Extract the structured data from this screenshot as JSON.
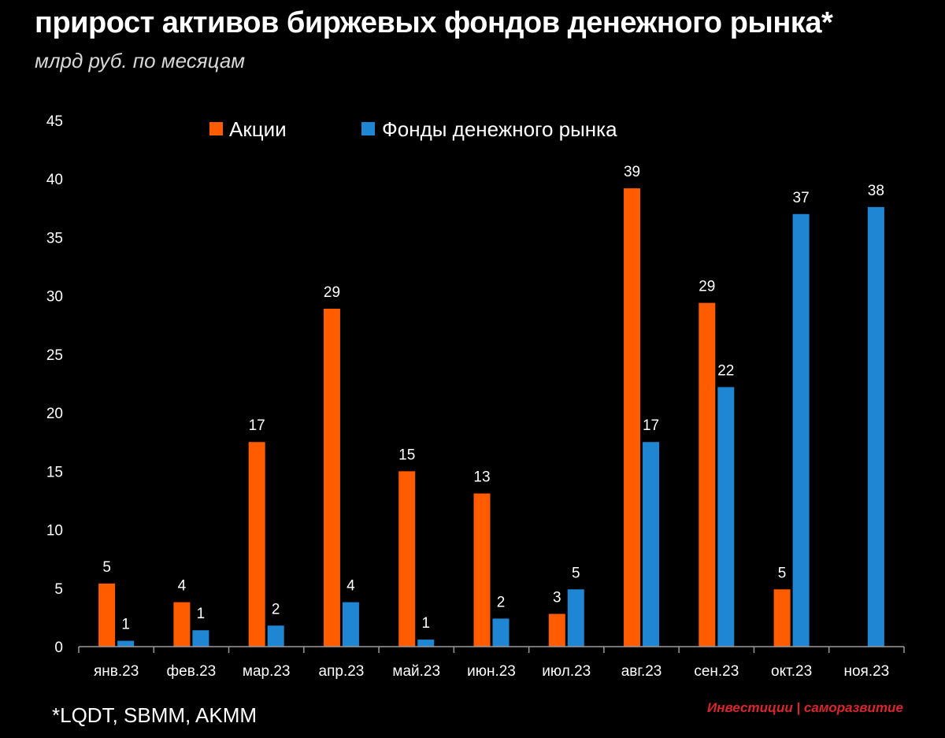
{
  "title": "прирост активов биржевых фондов денежного рынка*",
  "subtitle": "млрд руб. по месяцам",
  "footnote": "*LQDT, SBMM, AKMM",
  "watermark": "Инвестиции | саморазвитие",
  "colors": {
    "background": "#000000",
    "Акции": "#ff5c00",
    "Фонды денежного рынка": "#1f86d3"
  },
  "chart_data": {
    "type": "bar",
    "categories": [
      "янв.23",
      "фев.23",
      "мар.23",
      "апр.23",
      "май.23",
      "июн.23",
      "июл.23",
      "авг.23",
      "сен.23",
      "окт.23",
      "ноя.23"
    ],
    "series": [
      {
        "name": "Акции",
        "values": [
          5.4,
          3.8,
          17.5,
          28.9,
          15.0,
          13.1,
          2.8,
          39.2,
          29.4,
          4.9,
          null
        ],
        "labels": [
          "5",
          "4",
          "17",
          "29",
          "15",
          "13",
          "3",
          "39",
          "29",
          "5",
          ""
        ]
      },
      {
        "name": "Фонды денежного рынка",
        "values": [
          0.5,
          1.4,
          1.8,
          3.8,
          0.6,
          2.4,
          4.9,
          17.5,
          22.2,
          37.0,
          37.6
        ],
        "labels": [
          "1",
          "1",
          "2",
          "4",
          "1",
          "2",
          "5",
          "17",
          "22",
          "37",
          "38"
        ]
      }
    ],
    "yticks": [
      0,
      5,
      10,
      15,
      20,
      25,
      30,
      35,
      40,
      45
    ],
    "ylim": [
      0,
      45
    ],
    "grid": false,
    "legend_position": "top"
  }
}
